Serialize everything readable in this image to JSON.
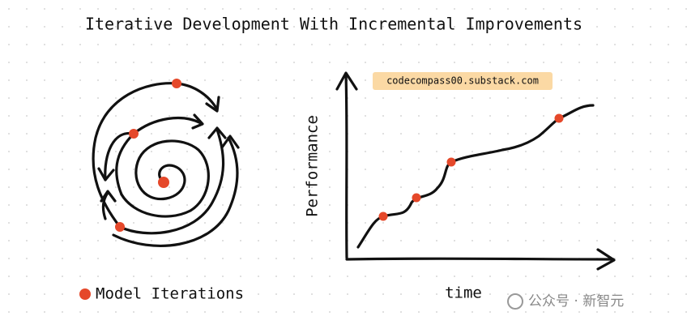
{
  "title": "Iterative Development With Incremental Improvements",
  "spiral": {
    "legend": "Model Iterations"
  },
  "graph": {
    "y_label": "Performance",
    "x_label": "time",
    "badge": "codecompass00.substack.com"
  },
  "watermark": "公众号 · 新智元"
}
